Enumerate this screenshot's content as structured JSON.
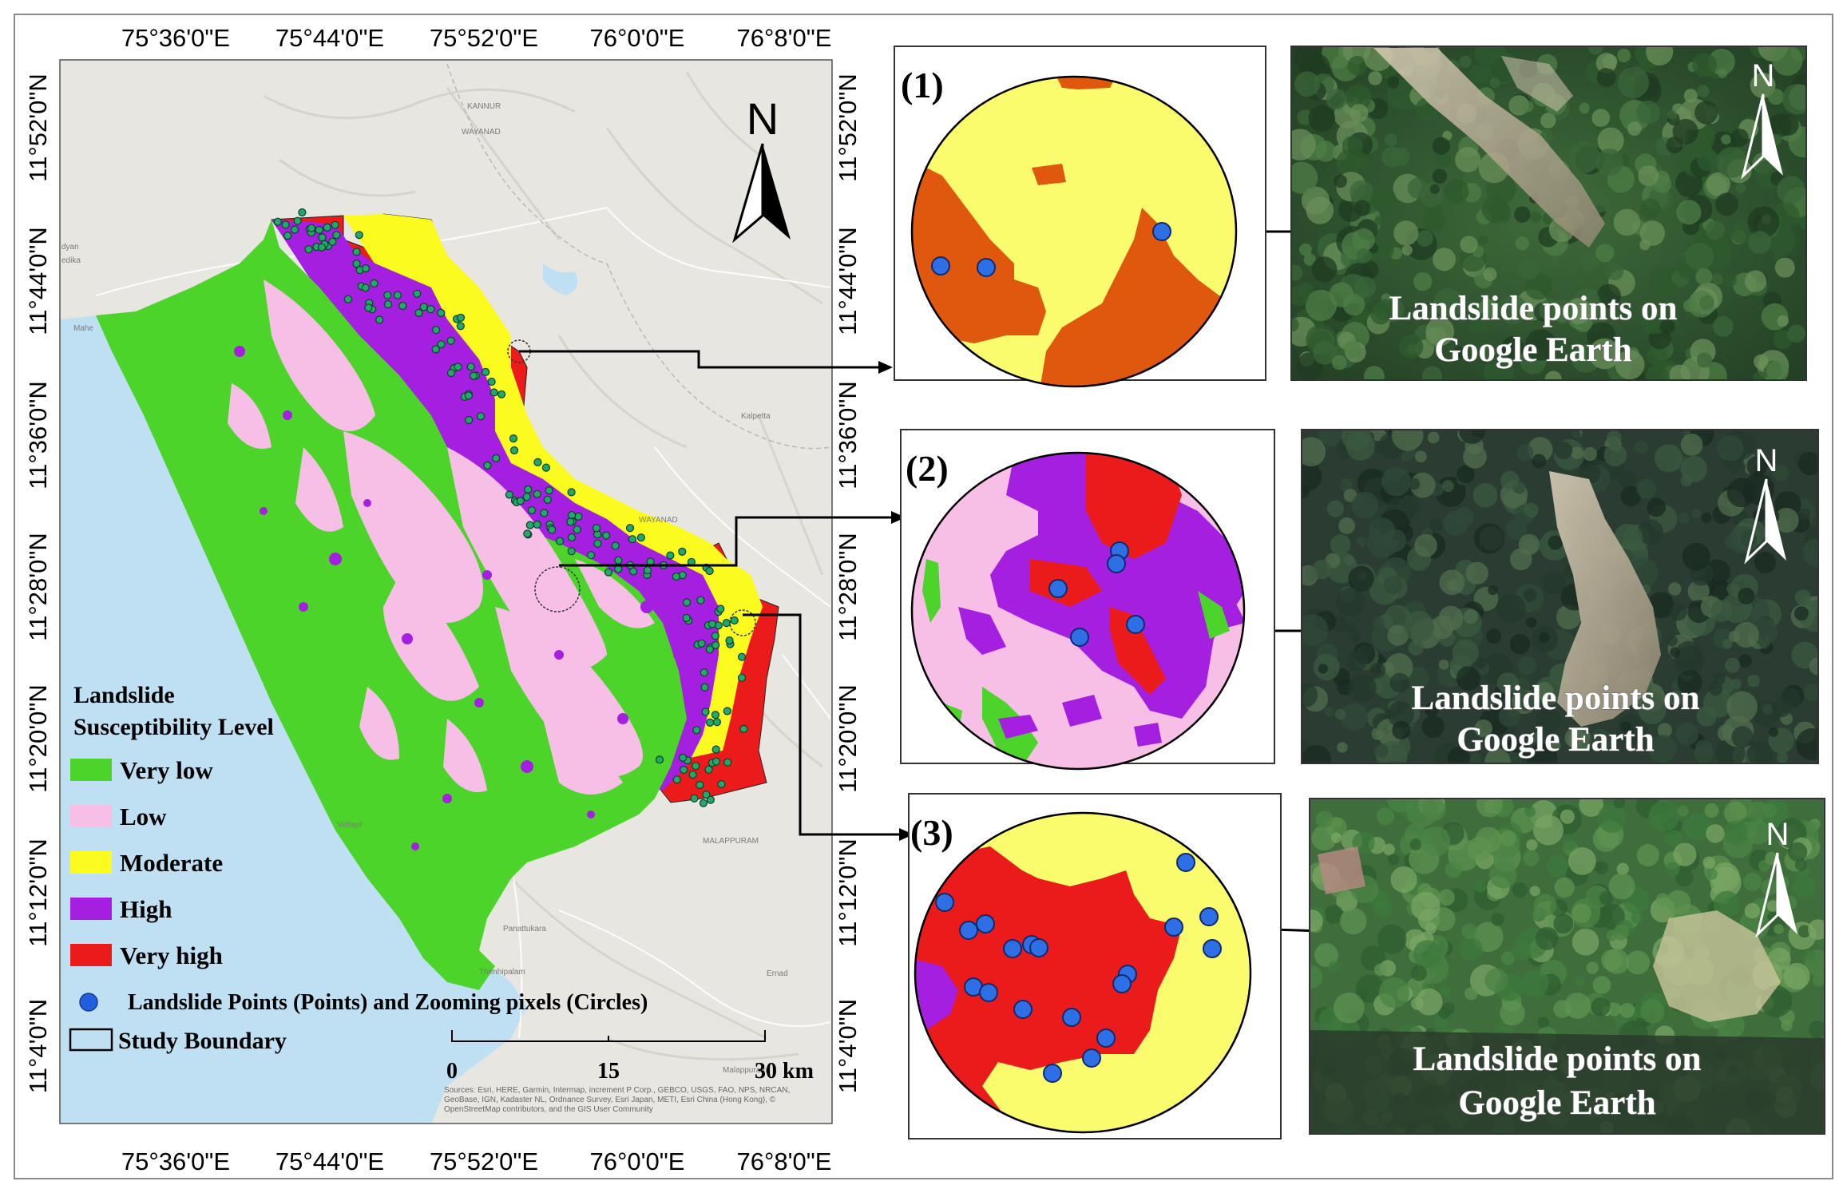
{
  "map": {
    "top_ticks": [
      "75°36'0\"E",
      "75°44'0\"E",
      "75°52'0\"E",
      "76°0'0\"E",
      "76°8'0\"E"
    ],
    "bottom_ticks": [
      "75°36'0\"E",
      "75°44'0\"E",
      "75°52'0\"E",
      "76°0'0\"E",
      "76°8'0\"E"
    ],
    "left_ticks": [
      "11°52'0\"N",
      "11°44'0\"N",
      "11°36'0\"N",
      "11°28'0\"N",
      "11°20'0\"N",
      "11°12'0\"N",
      "11°4'0\"N"
    ],
    "right_ticks": [
      "11°52'0\"N",
      "11°44'0\"N",
      "11°36'0\"N",
      "11°28'0\"N",
      "11°20'0\"N",
      "11°12'0\"N",
      "11°4'0\"N"
    ],
    "north_label": "N",
    "place_labels": [
      "KANNUR",
      "WAYANAD",
      "Mahe",
      "Kalpetta",
      "WAYANAD",
      "MALAPPURAM",
      "Vellayil",
      "Panattukara",
      "Thenhipalam",
      "Ernad",
      "Malappuram",
      "edika",
      "dyan"
    ],
    "scale_bar": {
      "ticks": [
        "0",
        "15",
        "30 km"
      ]
    },
    "attribution": "Sources: Esri, HERE, Garmin, Intermap, increment P Corp., GEBCO, USGS, FAO, NPS, NRCAN, GeoBase, IGN, Kadaster NL, Ordnance Survey, Esri Japan, METI, Esri China (Hong Kong), © OpenStreetMap contributors, and the GIS User Community"
  },
  "legend": {
    "title_line1": "Landslide",
    "title_line2": "Susceptibility Level",
    "classes": [
      {
        "label": "Very low",
        "color": "#4cd42a"
      },
      {
        "label": "Low",
        "color": "#f7bee6"
      },
      {
        "label": "Moderate",
        "color": "#fbfb20"
      },
      {
        "label": "High",
        "color": "#a41fdf"
      },
      {
        "label": "Very high",
        "color": "#ec1b1b"
      }
    ],
    "points_label": "Landslide Points (Points) and Zooming pixels (Circles)",
    "points_color": "#1f5fe0",
    "boundary_label": "Study Boundary"
  },
  "zooms": [
    {
      "label": "(1)"
    },
    {
      "label": "(2)"
    },
    {
      "label": "(3)"
    }
  ],
  "photos": [
    {
      "caption_line1": "Landslide points on",
      "caption_line2": "Google Earth",
      "north": "N"
    },
    {
      "caption_line1": "Landslide points on",
      "caption_line2": "Google Earth",
      "north": "N"
    },
    {
      "caption_line1": "Landslide points on",
      "caption_line2": "Google Earth",
      "north": "N"
    }
  ],
  "colors": {
    "sea": "#bfe0f2",
    "land_base": "#e8e6e0",
    "zoom1_moderate": "#fbfb6e",
    "zoom1_orange": "#e0580e",
    "zoom_point": "#2f6fe6"
  }
}
